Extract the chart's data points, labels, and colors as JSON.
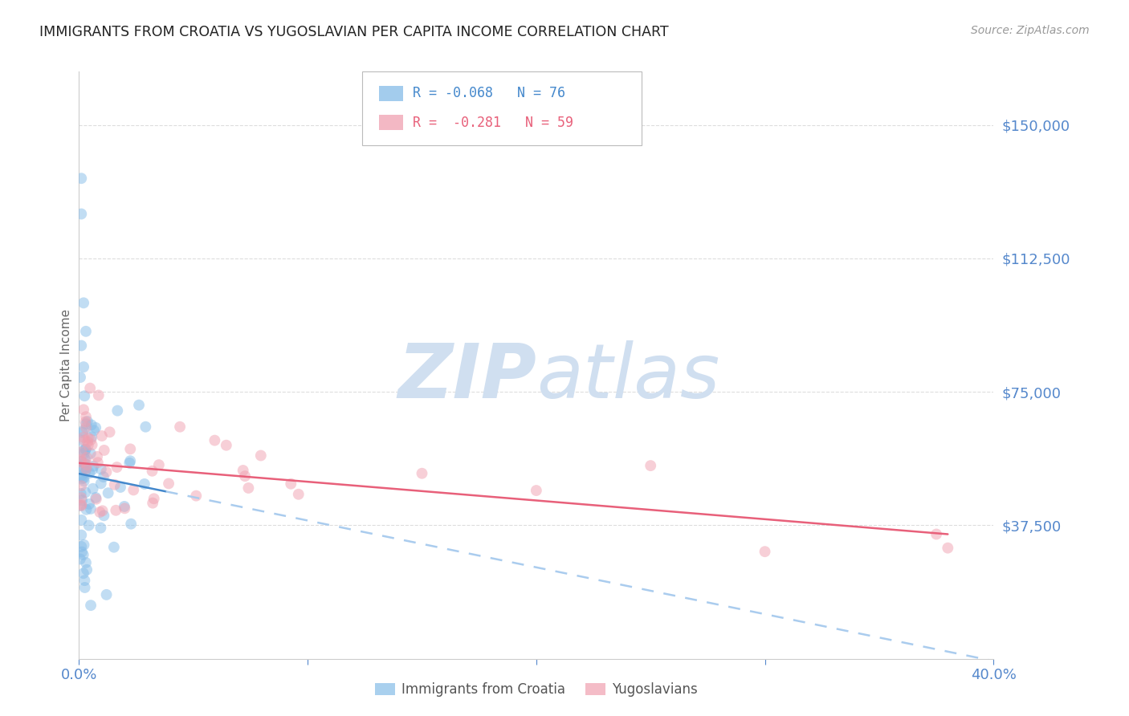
{
  "title": "IMMIGRANTS FROM CROATIA VS YUGOSLAVIAN PER CAPITA INCOME CORRELATION CHART",
  "source": "Source: ZipAtlas.com",
  "ylabel": "Per Capita Income",
  "ytick_labels": [
    "$37,500",
    "$75,000",
    "$112,500",
    "$150,000"
  ],
  "ytick_values": [
    37500,
    75000,
    112500,
    150000
  ],
  "ymin": 0,
  "ymax": 165000,
  "xmin": 0.0,
  "xmax": 0.4,
  "legend_label1": "Immigrants from Croatia",
  "legend_label2": "Yugoslavians",
  "legend_r1": "R = -0.068",
  "legend_n1": "N = 76",
  "legend_r2": "R =  -0.281",
  "legend_n2": "N = 59",
  "color_blue": "#85bce8",
  "color_pink": "#f0a0b0",
  "color_blue_line": "#4488cc",
  "color_pink_line": "#e8607a",
  "color_dashed": "#aaccee",
  "watermark_zip": "ZIP",
  "watermark_atlas": "atlas",
  "watermark_color": "#d0dff0",
  "title_color": "#222222",
  "axis_label_color": "#5588cc",
  "ylabel_color": "#666666",
  "background_color": "#ffffff",
  "grid_color": "#dddddd",
  "source_color": "#999999"
}
